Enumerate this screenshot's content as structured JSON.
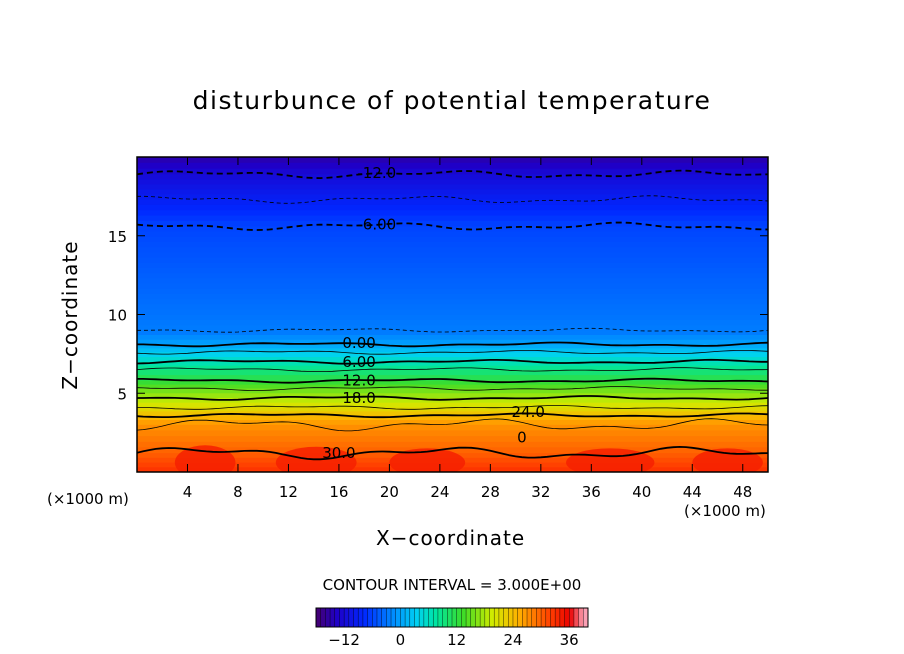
{
  "chart_data": {
    "type": "contour",
    "title": "disturbunce of potential temperature",
    "xlabel": "X−coordinate",
    "ylabel": "Z−coordinate",
    "x_unit_label": "(×1000 m)",
    "x_unit_label_right": "(×1000 m)",
    "xlim": [
      0,
      50
    ],
    "ylim": [
      0,
      20
    ],
    "x_ticks": [
      4,
      8,
      12,
      16,
      20,
      24,
      28,
      32,
      36,
      40,
      44,
      48
    ],
    "y_ticks": [
      5,
      10,
      15
    ],
    "contour_interval_text": "CONTOUR INTERVAL = 3.000E+00",
    "contour_interval": 3,
    "field_range": [
      -18,
      39
    ],
    "contour_levels": [
      {
        "value": -12,
        "z": 18.9,
        "dashed": true
      },
      {
        "value": -9,
        "z": 17.3,
        "dashed": true
      },
      {
        "value": -6,
        "z": 15.6,
        "dashed": true
      },
      {
        "value": -3,
        "z": 9.0,
        "dashed": true
      },
      {
        "value": 0,
        "z": 8.1,
        "dashed": false
      },
      {
        "value": 3,
        "z": 7.6,
        "dashed": false
      },
      {
        "value": 6,
        "z": 7.0,
        "dashed": false
      },
      {
        "value": 9,
        "z": 6.5,
        "dashed": false
      },
      {
        "value": 12,
        "z": 5.8,
        "dashed": false
      },
      {
        "value": 15,
        "z": 5.3,
        "dashed": false
      },
      {
        "value": 18,
        "z": 4.7,
        "dashed": false
      },
      {
        "value": 21,
        "z": 4.1,
        "dashed": false
      },
      {
        "value": 24,
        "z": 3.6,
        "dashed": false
      },
      {
        "value": 27,
        "z": 3.0,
        "dashed": false
      },
      {
        "value": 30,
        "z": 1.2,
        "dashed": false
      }
    ],
    "contour_labels": [
      {
        "text": "-12.0",
        "x": 19.0,
        "z": 19.0
      },
      {
        "text": "-6.00",
        "x": 19.0,
        "z": 15.7
      },
      {
        "text": "0.00",
        "x": 17.6,
        "z": 8.2
      },
      {
        "text": "6.00",
        "x": 17.6,
        "z": 7.0
      },
      {
        "text": "12.0",
        "x": 17.6,
        "z": 5.8
      },
      {
        "text": "18.0",
        "x": 17.6,
        "z": 4.7
      },
      {
        "text": "24.0",
        "x": 31.0,
        "z": 3.8
      },
      {
        "text": "30.0",
        "x": 16.0,
        "z": 1.2
      },
      {
        "text": "0",
        "x": 30.5,
        "z": 2.2
      }
    ],
    "colorbar": {
      "ticks": [
        -12,
        0,
        12,
        24,
        36
      ],
      "range": [
        -18,
        40
      ]
    }
  }
}
